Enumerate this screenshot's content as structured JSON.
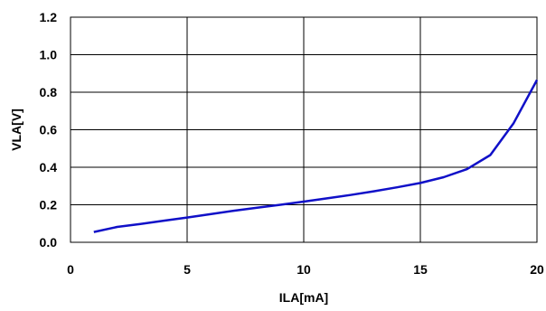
{
  "chart_data": {
    "type": "line",
    "title": "",
    "xlabel": "ILA[mA]",
    "ylabel": "VLA[V]",
    "xlim": [
      0,
      20
    ],
    "ylim": [
      0.0,
      1.2
    ],
    "x_ticks": [
      0,
      5,
      10,
      15,
      20
    ],
    "x_tick_labels": [
      "0",
      "5",
      "10",
      "15",
      "20"
    ],
    "y_ticks": [
      0.0,
      0.2,
      0.4,
      0.6,
      0.8,
      1.0,
      1.2
    ],
    "y_tick_labels": [
      "0.0",
      "0.2",
      "0.4",
      "0.6",
      "0.8",
      "1.0",
      "1.2"
    ],
    "grid": true,
    "legend": "none",
    "series": [
      {
        "color": "#1010c8",
        "x": [
          1,
          2,
          3,
          4,
          5,
          6,
          7,
          8,
          9,
          10,
          11,
          12,
          13,
          14,
          15,
          16,
          17,
          18,
          19,
          20
        ],
        "y": [
          0.055,
          0.082,
          0.098,
          0.115,
          0.132,
          0.15,
          0.168,
          0.184,
          0.2,
          0.217,
          0.234,
          0.252,
          0.272,
          0.293,
          0.316,
          0.347,
          0.39,
          0.465,
          0.635,
          0.865
        ]
      }
    ]
  }
}
